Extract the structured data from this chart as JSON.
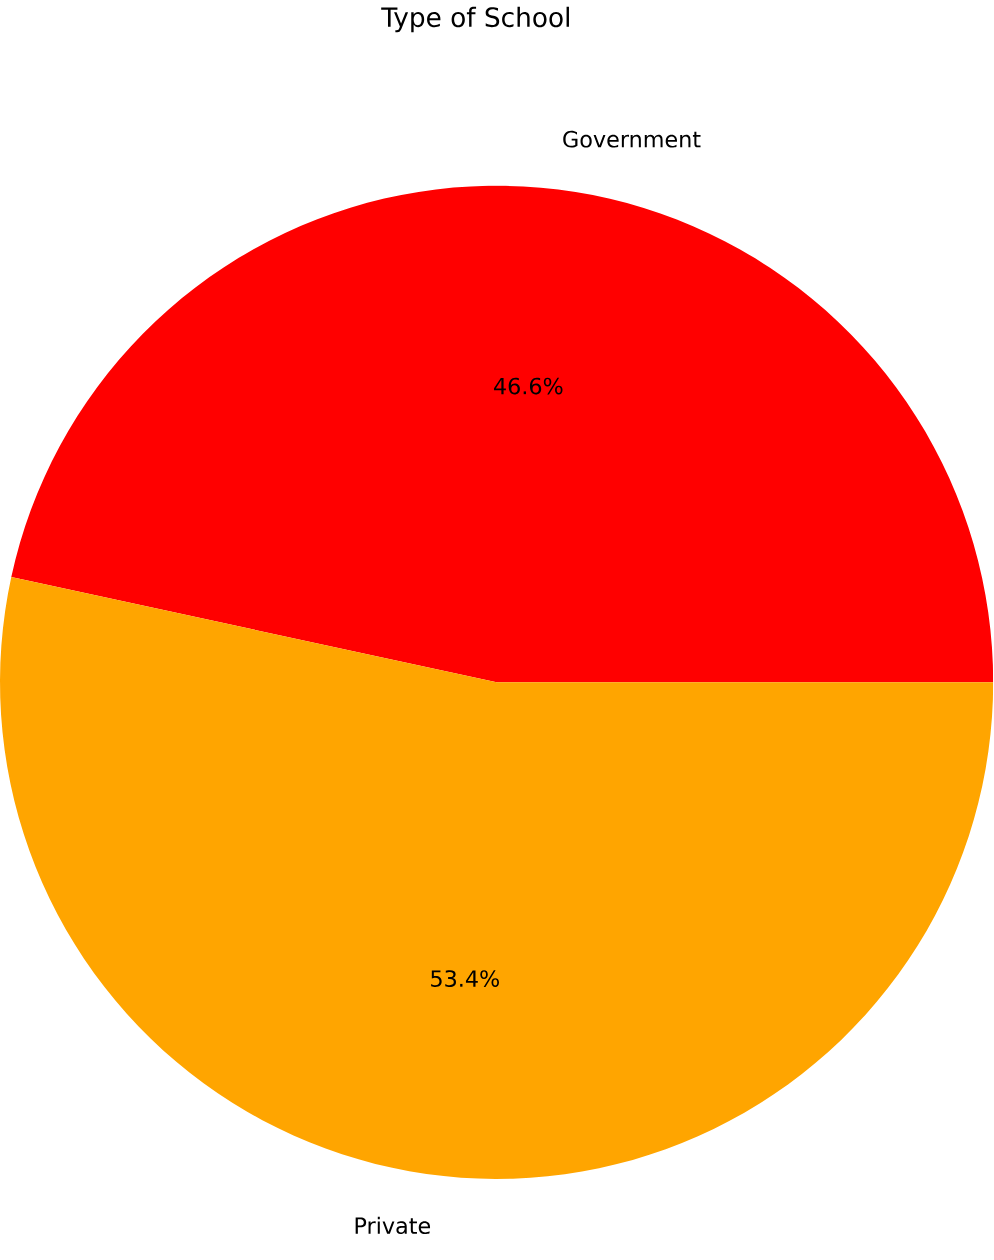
{
  "chart_data": {
    "type": "pie",
    "title": "Type of School",
    "categories": [
      "Government",
      "Private"
    ],
    "values": [
      46.6,
      53.4
    ],
    "colors": [
      "#ff0000",
      "#ffa500"
    ],
    "value_labels": [
      "46.6%",
      "53.4%"
    ]
  }
}
